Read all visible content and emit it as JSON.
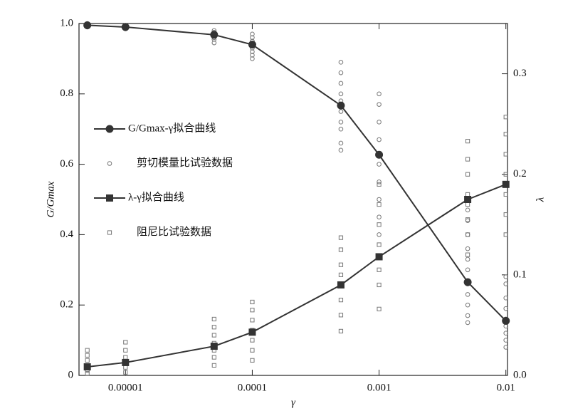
{
  "chart_data": {
    "type": "line",
    "xlabel": "γ",
    "ylabel": "G/Gmax",
    "y2label": "λ",
    "xscale": "log",
    "xlim": [
      4.3e-06,
      0.0103
    ],
    "xticks": [
      1e-05,
      0.0001,
      0.001,
      0.01
    ],
    "ylim": [
      0,
      1
    ],
    "yticks": [
      0,
      0.2,
      0.4,
      0.6,
      0.8,
      {
        "value": 1,
        "label": "1.0"
      }
    ],
    "y2lim": [
      0,
      0.35
    ],
    "y2ticks": [
      {
        "value": 0,
        "label": "0.0"
      },
      0.1,
      0.2,
      0.3
    ],
    "grid": false,
    "series": [
      {
        "name": "G/Gmax-γ拟合曲线",
        "color": "#333333",
        "marker": "circle",
        "line": true,
        "x": [
          5e-06,
          1e-05,
          5e-05,
          0.0001,
          0.0005,
          0.001,
          0.005,
          0.01
        ],
        "values": [
          0.995,
          0.99,
          0.968,
          0.94,
          0.767,
          0.627,
          0.265,
          0.155
        ]
      },
      {
        "name": "剪切模量比试验数据",
        "color": "#777777",
        "marker": "open-circle",
        "line": false,
        "x": [
          5e-06,
          5e-06,
          5e-06,
          1e-05,
          1e-05,
          1e-05,
          5e-05,
          5e-05,
          5e-05,
          5e-05,
          5e-05,
          5e-05,
          0.0001,
          0.0001,
          0.0001,
          0.0001,
          0.0001,
          0.0001,
          0.0001,
          0.0001,
          0.0005,
          0.0005,
          0.0005,
          0.0005,
          0.0005,
          0.0005,
          0.0005,
          0.0005,
          0.0005,
          0.0005,
          0.001,
          0.001,
          0.001,
          0.001,
          0.001,
          0.001,
          0.001,
          0.001,
          0.001,
          0.001,
          0.005,
          0.005,
          0.005,
          0.005,
          0.005,
          0.005,
          0.005,
          0.005,
          0.005,
          0.005,
          0.005,
          0.01,
          0.01,
          0.01,
          0.01,
          0.01,
          0.01,
          0.01,
          0.01,
          0.01
        ],
        "values": [
          0.99,
          0.995,
          1.0,
          0.985,
          0.99,
          0.995,
          0.945,
          0.955,
          0.96,
          0.97,
          0.975,
          0.98,
          0.9,
          0.91,
          0.92,
          0.93,
          0.94,
          0.95,
          0.96,
          0.97,
          0.64,
          0.66,
          0.7,
          0.72,
          0.75,
          0.78,
          0.8,
          0.83,
          0.86,
          0.89,
          0.4,
          0.45,
          0.5,
          0.55,
          0.6,
          0.63,
          0.67,
          0.72,
          0.77,
          0.8,
          0.15,
          0.17,
          0.2,
          0.23,
          0.26,
          0.3,
          0.33,
          0.36,
          0.4,
          0.44,
          0.47,
          0.08,
          0.1,
          0.12,
          0.14,
          0.16,
          0.19,
          0.22,
          0.26,
          0.28
        ]
      },
      {
        "name": "λ-γ拟合曲线",
        "color": "#333333",
        "marker": "square",
        "line": true,
        "axis": "y2",
        "x": [
          5e-06,
          1e-05,
          5e-05,
          0.0001,
          0.0005,
          0.001,
          0.005,
          0.01
        ],
        "values": [
          0.0085,
          0.0128,
          0.029,
          0.043,
          0.09,
          0.118,
          0.175,
          0.19
        ]
      },
      {
        "name": "阻尼比试验数据",
        "color": "#777777",
        "marker": "open-square",
        "line": false,
        "axis": "y2",
        "x": [
          5e-06,
          5e-06,
          5e-06,
          5e-06,
          5e-06,
          5e-06,
          1e-05,
          1e-05,
          1e-05,
          1e-05,
          1e-05,
          1e-05,
          5e-05,
          5e-05,
          5e-05,
          5e-05,
          5e-05,
          5e-05,
          5e-05,
          0.0001,
          0.0001,
          0.0001,
          0.0001,
          0.0001,
          0.0001,
          0.0001,
          0.0005,
          0.0005,
          0.0005,
          0.0005,
          0.0005,
          0.0005,
          0.0005,
          0.0005,
          0.001,
          0.001,
          0.001,
          0.001,
          0.001,
          0.001,
          0.001,
          0.001,
          0.005,
          0.005,
          0.005,
          0.005,
          0.005,
          0.005,
          0.005,
          0.005,
          0.01,
          0.01,
          0.01,
          0.01,
          0.01,
          0.01,
          0.01
        ],
        "values": [
          0.002,
          0.005,
          0.01,
          0.015,
          0.02,
          0.025,
          0.003,
          0.008,
          0.012,
          0.018,
          0.025,
          0.033,
          0.01,
          0.018,
          0.025,
          0.032,
          0.04,
          0.048,
          0.056,
          0.015,
          0.025,
          0.035,
          0.045,
          0.055,
          0.065,
          0.073,
          0.044,
          0.06,
          0.075,
          0.09,
          0.1,
          0.11,
          0.125,
          0.137,
          0.066,
          0.09,
          0.105,
          0.118,
          0.13,
          0.15,
          0.17,
          0.19,
          0.12,
          0.14,
          0.155,
          0.17,
          0.18,
          0.2,
          0.215,
          0.233,
          0.14,
          0.16,
          0.18,
          0.2,
          0.22,
          0.24,
          0.257
        ]
      }
    ]
  }
}
